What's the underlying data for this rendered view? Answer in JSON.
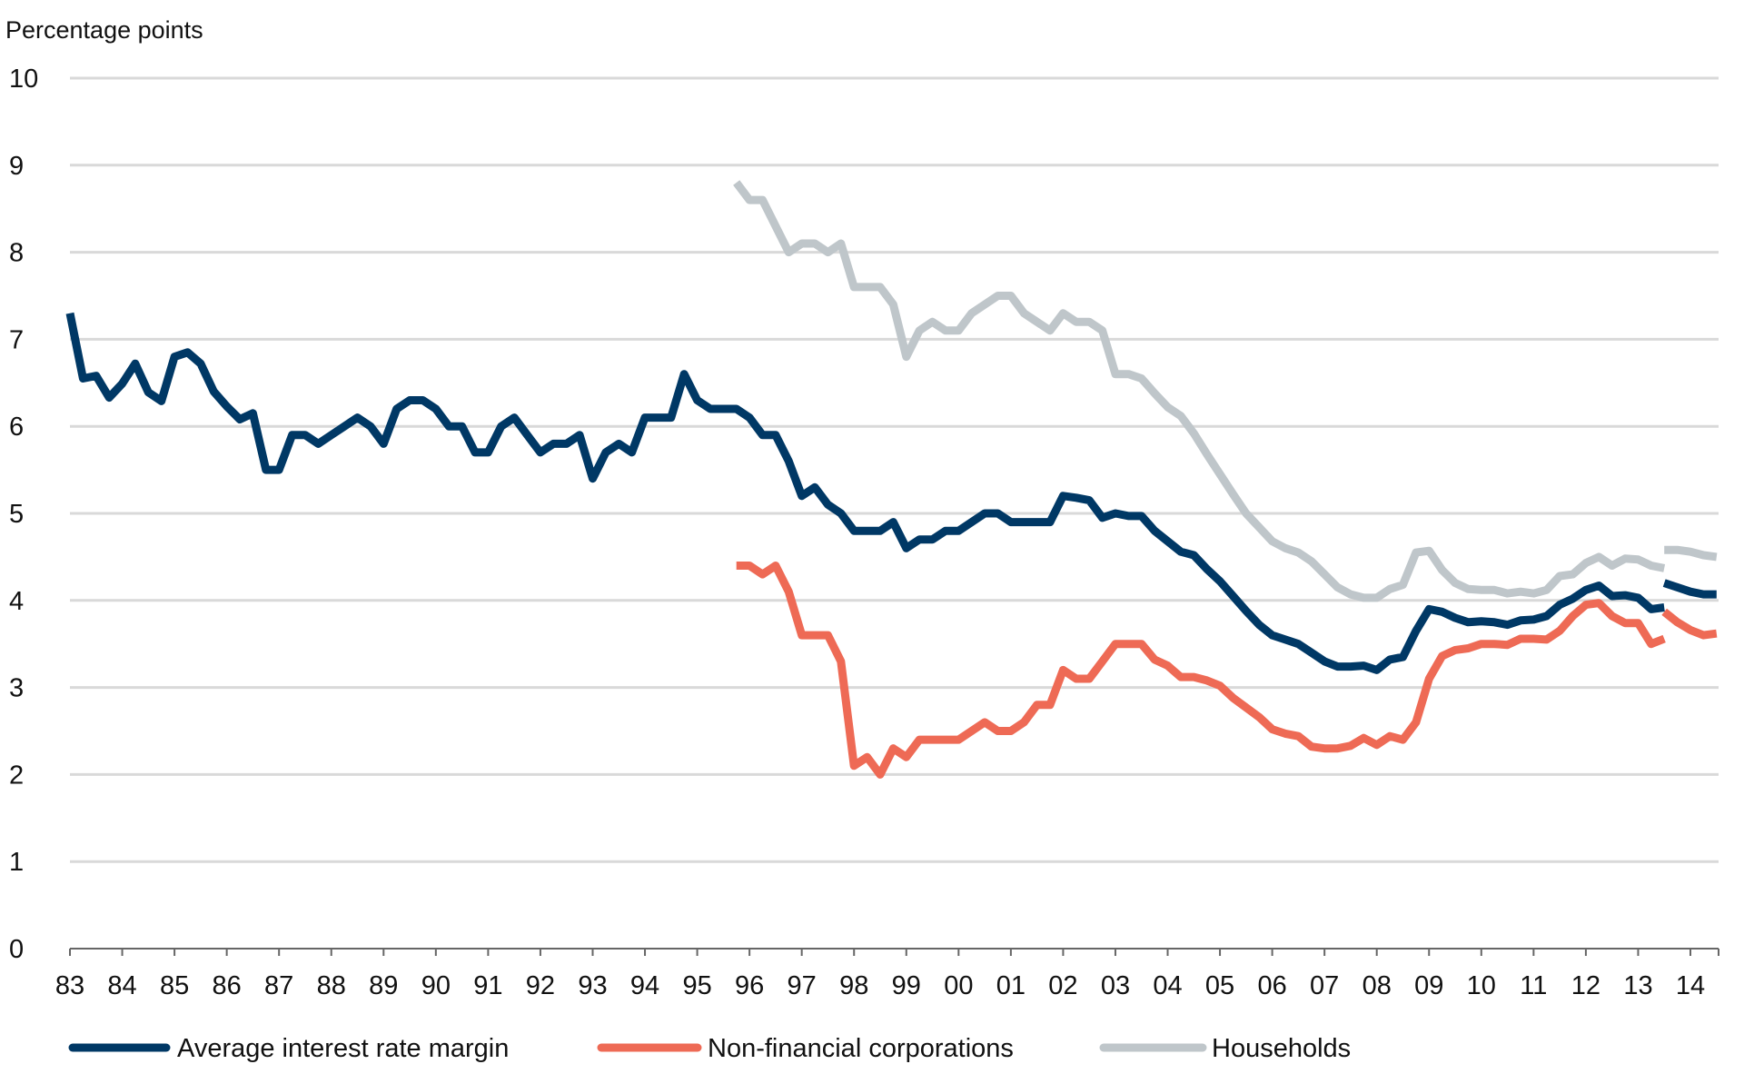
{
  "chart_data": {
    "type": "line",
    "title": "",
    "ylabel": "Percentage points",
    "xlabel": "",
    "ylim": [
      0,
      10
    ],
    "xlim": [
      1983,
      2014.54
    ],
    "yticks": [
      "0",
      "1",
      "2",
      "3",
      "4",
      "5",
      "6",
      "7",
      "8",
      "9",
      "10"
    ],
    "xticks": [
      "83",
      "84",
      "85",
      "86",
      "87",
      "88",
      "89",
      "90",
      "91",
      "92",
      "93",
      "94",
      "95",
      "96",
      "97",
      "98",
      "99",
      "00",
      "01",
      "02",
      "03",
      "04",
      "05",
      "06",
      "07",
      "08",
      "09",
      "10",
      "11",
      "12",
      "13",
      "14"
    ],
    "grid": true,
    "legend_position": "bottom",
    "series": [
      {
        "name": "Average interest rate margin",
        "color": "#003865",
        "segments": [
          {
            "start": 1983.0,
            "step": 0.25,
            "values": [
              7.3,
              6.55,
              6.58,
              6.33,
              6.49,
              6.72,
              6.39,
              6.29,
              6.8,
              6.85,
              6.72,
              6.4,
              6.23,
              6.08,
              6.15,
              5.5,
              5.5,
              5.9,
              5.9,
              5.8,
              5.9,
              6.0,
              6.1,
              6.0,
              5.8,
              6.2,
              6.3,
              6.3,
              6.2,
              6.0,
              6.0,
              5.7,
              5.7,
              6.0,
              6.1,
              5.9,
              5.7,
              5.8,
              5.8,
              5.9,
              5.4,
              5.7,
              5.8,
              5.7,
              6.1,
              6.1,
              6.1,
              6.6,
              6.3,
              6.2,
              6.2,
              6.2,
              6.1,
              5.9,
              5.9,
              5.6,
              5.2,
              5.3,
              5.1,
              5.0,
              4.8,
              4.8,
              4.8,
              4.9,
              4.6,
              4.7,
              4.7,
              4.8,
              4.8,
              4.9,
              5.0,
              5.0,
              4.9,
              4.9,
              4.9,
              4.9,
              5.2,
              5.18,
              5.15,
              4.95,
              5.0,
              4.97,
              4.97,
              4.8,
              4.68,
              4.56,
              4.52,
              4.36,
              4.22,
              4.05,
              3.88,
              3.72,
              3.6,
              3.55,
              3.5,
              3.4,
              3.3,
              3.24,
              3.24,
              3.25,
              3.2,
              3.32,
              3.35,
              3.65,
              3.9,
              3.87,
              3.8,
              3.75,
              3.76,
              3.75,
              3.72,
              3.77,
              3.78,
              3.82,
              3.95,
              4.02,
              4.12,
              4.17,
              4.05,
              4.06,
              4.03,
              3.9,
              3.92
            ]
          },
          {
            "start": 2013.5,
            "step": 0.25,
            "values": [
              4.2,
              4.15,
              4.1,
              4.07,
              4.07
            ]
          }
        ]
      },
      {
        "name": "Non-financial corporations",
        "color": "#EE6A55",
        "segments": [
          {
            "start": 1995.75,
            "step": 0.25,
            "values": [
              4.4,
              4.4,
              4.3,
              4.4,
              4.1,
              3.6,
              3.6,
              3.6,
              3.3,
              2.1,
              2.2,
              2.0,
              2.3,
              2.2,
              2.4,
              2.4,
              2.4,
              2.4,
              2.5,
              2.6,
              2.5,
              2.5,
              2.6,
              2.8,
              2.8,
              3.2,
              3.1,
              3.1,
              3.3,
              3.5,
              3.5,
              3.5,
              3.32,
              3.25,
              3.12,
              3.12,
              3.08,
              3.02,
              2.88,
              2.77,
              2.66,
              2.52,
              2.47,
              2.44,
              2.32,
              2.3,
              2.3,
              2.33,
              2.42,
              2.34,
              2.44,
              2.4,
              2.6,
              3.1,
              3.36,
              3.43,
              3.45,
              3.5,
              3.5,
              3.49,
              3.56,
              3.56,
              3.55,
              3.65,
              3.82,
              3.95,
              3.97,
              3.82,
              3.74,
              3.74,
              3.5,
              3.56
            ]
          },
          {
            "start": 2013.5,
            "step": 0.25,
            "values": [
              3.87,
              3.75,
              3.66,
              3.6,
              3.62
            ]
          }
        ]
      },
      {
        "name": "Households",
        "color": "#BFC6CA",
        "segments": [
          {
            "start": 1995.75,
            "step": 0.25,
            "values": [
              8.8,
              8.6,
              8.6,
              8.3,
              8.0,
              8.1,
              8.1,
              8.0,
              8.1,
              7.6,
              7.6,
              7.6,
              7.4,
              6.8,
              7.1,
              7.2,
              7.1,
              7.1,
              7.3,
              7.4,
              7.5,
              7.5,
              7.3,
              7.2,
              7.1,
              7.3,
              7.2,
              7.2,
              7.1,
              6.6,
              6.6,
              6.55,
              6.38,
              6.22,
              6.12,
              5.92,
              5.68,
              5.45,
              5.22,
              5.0,
              4.84,
              4.68,
              4.6,
              4.55,
              4.45,
              4.3,
              4.15,
              4.07,
              4.03,
              4.03,
              4.13,
              4.18,
              4.55,
              4.57,
              4.35,
              4.2,
              4.13,
              4.12,
              4.12,
              4.08,
              4.1,
              4.08,
              4.12,
              4.28,
              4.3,
              4.43,
              4.5,
              4.4,
              4.48,
              4.47,
              4.4,
              4.37
            ]
          },
          {
            "start": 2013.5,
            "step": 0.25,
            "values": [
              4.58,
              4.58,
              4.56,
              4.52,
              4.5
            ]
          }
        ]
      }
    ]
  }
}
